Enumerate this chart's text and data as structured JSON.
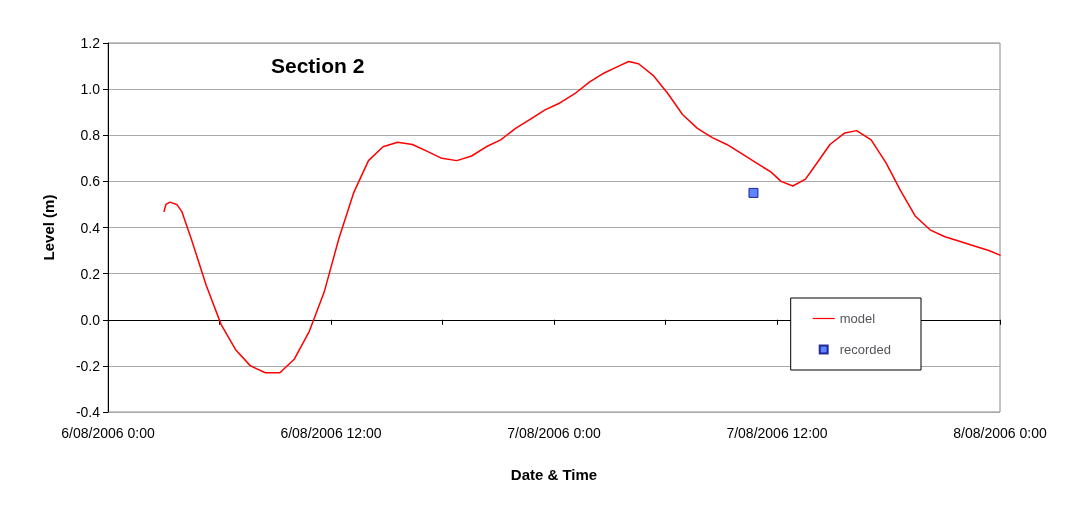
{
  "chart_data": {
    "type": "line",
    "title": "Section 2",
    "xlabel": "Date & Time",
    "ylabel": "Level (m)",
    "xlim": [
      "2006-08-06T00:00",
      "2006-08-08T00:00"
    ],
    "xticks": [
      {
        "value": "2006-08-06T00:00",
        "label": "6/08/2006 0:00"
      },
      {
        "value": "2006-08-06T06:00",
        "label": null
      },
      {
        "value": "2006-08-06T12:00",
        "label": "6/08/2006 12:00"
      },
      {
        "value": "2006-08-06T18:00",
        "label": null
      },
      {
        "value": "2006-08-07T00:00",
        "label": "7/08/2006 0:00"
      },
      {
        "value": "2006-08-07T06:00",
        "label": null
      },
      {
        "value": "2006-08-07T12:00",
        "label": "7/08/2006 12:00"
      },
      {
        "value": "2006-08-07T18:00",
        "label": null
      },
      {
        "value": "2006-08-08T00:00",
        "label": "8/08/2006 0:00"
      }
    ],
    "ylim": [
      -0.4,
      1.2
    ],
    "yticks": [
      {
        "value": -0.4,
        "label": "-0.4"
      },
      {
        "value": -0.2,
        "label": "-0.2"
      },
      {
        "value": 0,
        "label": "0.0"
      },
      {
        "value": 0.2,
        "label": "0.2"
      },
      {
        "value": 0.4,
        "label": "0.4"
      },
      {
        "value": 0.6,
        "label": "0.6"
      },
      {
        "value": 0.8,
        "label": "0.8"
      },
      {
        "value": 1,
        "label": "1.0"
      },
      {
        "value": 1.2,
        "label": "1.2"
      }
    ],
    "grid": "y",
    "legend": "bottom right",
    "series": [
      {
        "name": "model",
        "color": "#ff0000",
        "marker": "none",
        "x": [
          "2006-08-06T03:01",
          "2006-08-06T03:07",
          "2006-08-06T03:20",
          "2006-08-06T03:42",
          "2006-08-06T03:58",
          "2006-08-06T04:29",
          "2006-08-06T05:17",
          "2006-08-06T06:05",
          "2006-08-06T06:52",
          "2006-08-06T07:40",
          "2006-08-06T08:28",
          "2006-08-06T09:15",
          "2006-08-06T10:02",
          "2006-08-06T10:50",
          "2006-08-06T11:38",
          "2006-08-06T12:25",
          "2006-08-06T13:13",
          "2006-08-06T14:01",
          "2006-08-06T14:48",
          "2006-08-06T15:35",
          "2006-08-06T16:23",
          "2006-08-06T17:11",
          "2006-08-06T17:58",
          "2006-08-06T18:46",
          "2006-08-06T19:34",
          "2006-08-06T20:21",
          "2006-08-06T21:08",
          "2006-08-06T21:56",
          "2006-08-06T22:44",
          "2006-08-06T23:31",
          "2006-08-07T00:19",
          "2006-08-07T01:07",
          "2006-08-07T01:54",
          "2006-08-07T02:42",
          "2006-08-07T03:29",
          "2006-08-07T04:01",
          "2006-08-07T04:33",
          "2006-08-07T05:20",
          "2006-08-07T06:08",
          "2006-08-07T06:55",
          "2006-08-07T07:43",
          "2006-08-07T08:31",
          "2006-08-07T09:18",
          "2006-08-07T10:06",
          "2006-08-07T10:53",
          "2006-08-07T11:41",
          "2006-08-07T12:13",
          "2006-08-07T12:51",
          "2006-08-07T13:32",
          "2006-08-07T14:04",
          "2006-08-07T14:51",
          "2006-08-07T15:39",
          "2006-08-07T16:17",
          "2006-08-07T17:04",
          "2006-08-07T17:52",
          "2006-08-07T18:39",
          "2006-08-07T19:26",
          "2006-08-07T20:14",
          "2006-08-07T21:02",
          "2006-08-07T21:49",
          "2006-08-07T22:37",
          "2006-08-07T23:24",
          "2006-08-08T00:00"
        ],
        "values": [
          0.47,
          0.5,
          0.51,
          0.5,
          0.47,
          0.35,
          0.15,
          -0.02,
          -0.13,
          -0.2,
          -0.23,
          -0.23,
          -0.17,
          -0.05,
          0.12,
          0.35,
          0.55,
          0.69,
          0.75,
          0.77,
          0.76,
          0.73,
          0.7,
          0.69,
          0.71,
          0.75,
          0.78,
          0.83,
          0.87,
          0.91,
          0.94,
          0.98,
          1.03,
          1.07,
          1.1,
          1.12,
          1.11,
          1.06,
          0.98,
          0.89,
          0.83,
          0.79,
          0.76,
          0.72,
          0.68,
          0.64,
          0.6,
          0.58,
          0.61,
          0.67,
          0.76,
          0.81,
          0.82,
          0.78,
          0.68,
          0.56,
          0.45,
          0.39,
          0.36,
          0.34,
          0.32,
          0.3,
          0.28
        ]
      },
      {
        "name": "recorded",
        "color": "#3366ff",
        "type": "scatter",
        "marker": "square",
        "x": [
          "2006-08-07T10:44"
        ],
        "values": [
          0.55
        ]
      }
    ]
  }
}
